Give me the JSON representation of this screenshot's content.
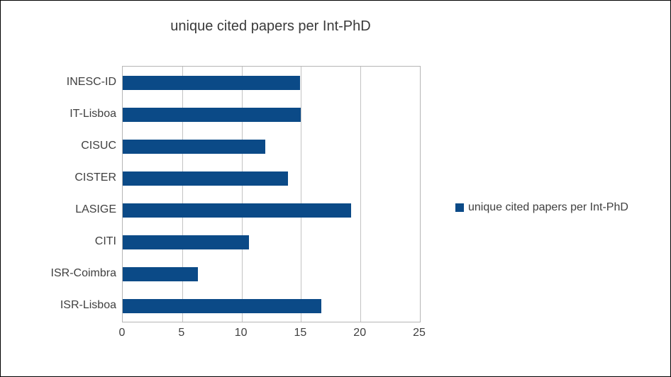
{
  "chart_data": {
    "type": "bar",
    "orientation": "horizontal",
    "title": "unique cited papers per Int-PhD",
    "series_name": "unique cited papers per Int-PhD",
    "categories": [
      "INESC-ID",
      "IT-Lisboa",
      "CISUC",
      "CISTER",
      "LASIGE",
      "CITI",
      "ISR-Coimbra",
      "ISR-Lisboa"
    ],
    "values": [
      14.9,
      15.0,
      12.0,
      13.9,
      19.2,
      10.6,
      6.3,
      16.7
    ],
    "xlim": [
      0,
      25
    ],
    "x_ticks": [
      0,
      5,
      10,
      15,
      20,
      25
    ],
    "grid": true,
    "legend_position": "right",
    "colors": {
      "bar": "#0B4A87",
      "gridline": "#C3C3C3",
      "plot_border": "#B5B5B5",
      "text": "#404040",
      "title_text": "#3A3A3A",
      "page_border": "#000000",
      "background": "#FFFFFF"
    }
  }
}
